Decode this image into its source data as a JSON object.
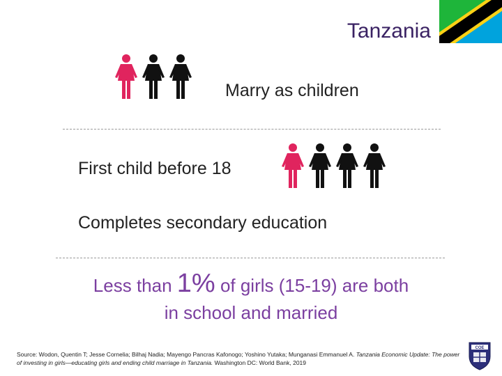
{
  "header": {
    "title": "Tanzania",
    "flag_icon": "tanzania-flag-icon"
  },
  "colors": {
    "highlight_figure": "#e0245e",
    "other_figure": "#111111",
    "title": "#3a2263",
    "fact_text": "#7b3fa0",
    "flag_green": "#1eb53a",
    "flag_blue": "#00a3dd",
    "flag_yellow": "#fcd116",
    "flag_black": "#000000"
  },
  "stats": [
    {
      "label": "Marry as children",
      "highlighted": 1,
      "total": 3,
      "icon": "girl-figure-icon"
    },
    {
      "label": "First child before 18",
      "highlighted": 1,
      "total": 4,
      "icon": "girl-figure-icon"
    },
    {
      "label": "Completes secondary education"
    }
  ],
  "fact": {
    "prefix": "Less than",
    "percent": "1%",
    "middle": "of girls (15-19) are both",
    "line2": "in school and married"
  },
  "source": {
    "prefix": "Source: Wodon, Quentin T; Jesse Cornelia; Bilhaj Nadia; Mayengo Pancras Kafonogo; Yoshino Yutaka; Munganasi Emmanuel A.",
    "title": "Tanzania Economic Update: The power of investing in girls—educating girls and ending child marriage in Tanzania.",
    "suffix": "Washington DC: World Bank, 2019"
  },
  "logo": {
    "icon": "university-crest-icon",
    "text": "COE"
  }
}
